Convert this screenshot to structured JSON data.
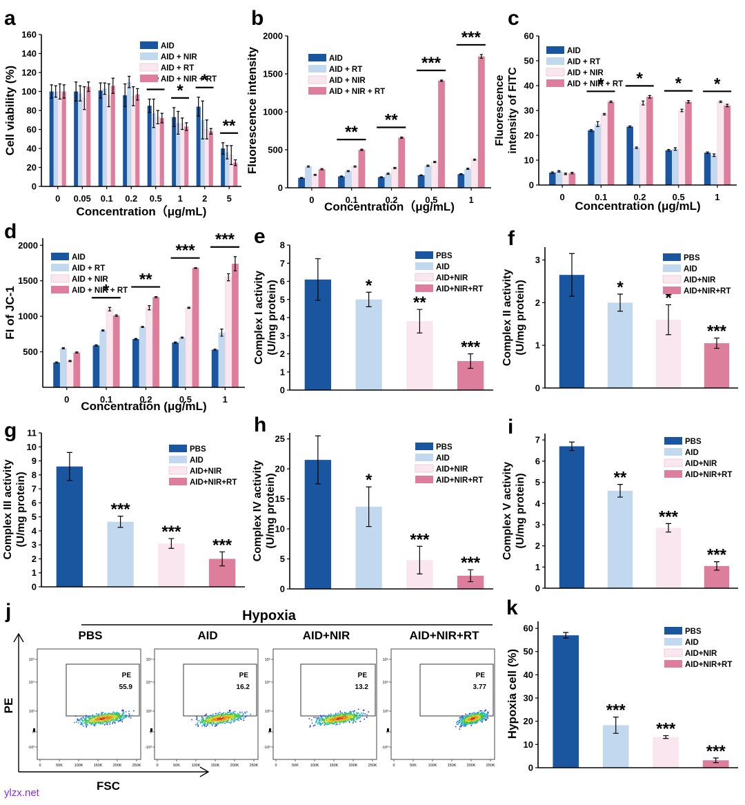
{
  "colors": {
    "AID_dark": "#1a56a0",
    "light_blue": "#c2d8ee",
    "light_pink": "#fae6ee",
    "pink": "#dd7f9c",
    "axis": "#000000"
  },
  "chart_data": [
    {
      "id": "a",
      "type": "bar",
      "letter": "a",
      "ylabel": "Cell viability (%)",
      "xlabel": "Concentration（μg/mL)",
      "ylim": [
        0,
        160
      ],
      "yticks": [
        0,
        20,
        40,
        60,
        80,
        100,
        120,
        140,
        160
      ],
      "categories": [
        "0",
        "0.05",
        "0.1",
        "0.2",
        "0.5",
        "1",
        "2",
        "5"
      ],
      "series": [
        {
          "name": "AID",
          "color": "#1a56a0",
          "values": [
            100,
            100,
            101,
            96,
            85,
            73,
            84,
            40
          ],
          "err": [
            7,
            10,
            8,
            12,
            7,
            10,
            10,
            6
          ]
        },
        {
          "name": "AID + NIR",
          "color": "#c2d8ee",
          "values": [
            100,
            98,
            103,
            110,
            77,
            67,
            70,
            36
          ],
          "err": [
            6,
            8,
            6,
            6,
            15,
            12,
            20,
            7
          ]
        },
        {
          "name": "AID + RT",
          "color": "#fae6ee",
          "values": [
            100,
            93,
            96,
            95,
            73,
            66,
            60,
            33
          ],
          "err": [
            8,
            12,
            12,
            10,
            7,
            6,
            10,
            10
          ]
        },
        {
          "name": "AID + NIR + RT",
          "color": "#dd7f9c",
          "values": [
            100,
            105,
            106,
            97,
            72,
            63,
            58,
            25
          ],
          "err": [
            7,
            5,
            8,
            6,
            5,
            4,
            3,
            3
          ]
        }
      ],
      "sig": [
        {
          "cat": 4,
          "label": "*"
        },
        {
          "cat": 5,
          "label": "*"
        },
        {
          "cat": 6,
          "label": "*"
        },
        {
          "cat": 7,
          "label": "**"
        }
      ],
      "legend": [
        "AID",
        "AID + NIR",
        "AID + RT",
        "AID + NIR + RT"
      ]
    },
    {
      "id": "b",
      "type": "bar",
      "letter": "b",
      "ylabel": "Fluorescence intensity",
      "xlabel": "Concentration（μg/mL)",
      "ylim": [
        0,
        2000
      ],
      "yticks": [
        0,
        500,
        1000,
        1500,
        2000
      ],
      "categories": [
        "0",
        "0.1",
        "0.2",
        "0.5",
        "1"
      ],
      "series": [
        {
          "name": "AID",
          "color": "#1a56a0",
          "values": [
            130,
            150,
            140,
            165,
            180
          ],
          "err": [
            5,
            5,
            5,
            5,
            5
          ]
        },
        {
          "name": "AID + RT",
          "color": "#c2d8ee",
          "values": [
            280,
            220,
            185,
            290,
            250
          ],
          "err": [
            8,
            8,
            8,
            8,
            8
          ]
        },
        {
          "name": "AID + NIR",
          "color": "#fae6ee",
          "values": [
            170,
            280,
            260,
            340,
            370
          ],
          "err": [
            8,
            8,
            8,
            8,
            8
          ]
        },
        {
          "name": "AID + NIR + RT",
          "color": "#dd7f9c",
          "values": [
            245,
            500,
            660,
            1410,
            1730
          ],
          "err": [
            8,
            8,
            8,
            8,
            25
          ]
        }
      ],
      "sig": [
        {
          "cat": 1,
          "label": "**"
        },
        {
          "cat": 2,
          "label": "**"
        },
        {
          "cat": 3,
          "label": "***"
        },
        {
          "cat": 4,
          "label": "***"
        }
      ],
      "legend": [
        "AID",
        "AID + RT",
        "AID + NIR",
        "AID + NIR + RT"
      ]
    },
    {
      "id": "c",
      "type": "bar",
      "letter": "c",
      "ylabel": "Fluorescence intensity of FITC",
      "xlabel": "Concentration (μg/mL)",
      "ylim": [
        0,
        60
      ],
      "yticks": [
        0,
        10,
        20,
        30,
        40,
        50,
        60
      ],
      "categories": [
        "0",
        "0.1",
        "0.2",
        "0.5",
        "1"
      ],
      "series": [
        {
          "name": "AID",
          "color": "#1a56a0",
          "values": [
            5,
            22,
            23.5,
            14,
            13
          ],
          "err": [
            0.3,
            0.3,
            0.3,
            0.3,
            0.3
          ]
        },
        {
          "name": "AID + RT",
          "color": "#c2d8ee",
          "values": [
            5.5,
            24.5,
            15,
            14.5,
            12
          ],
          "err": [
            0.3,
            1,
            0.3,
            0.5,
            0.5
          ]
        },
        {
          "name": "AID + NIR",
          "color": "#fae6ee",
          "values": [
            4.5,
            28.5,
            33,
            30,
            33.5
          ],
          "err": [
            0.3,
            0.3,
            0.8,
            0.5,
            0.3
          ]
        },
        {
          "name": "AID + NIR + RT",
          "color": "#dd7f9c",
          "values": [
            4.8,
            33.5,
            35.5,
            33.5,
            32
          ],
          "err": [
            0.3,
            0.3,
            0.5,
            0.5,
            0.5
          ]
        }
      ],
      "sig": [
        {
          "cat": 1,
          "label": "*"
        },
        {
          "cat": 2,
          "label": "*"
        },
        {
          "cat": 3,
          "label": "*"
        },
        {
          "cat": 4,
          "label": "*"
        }
      ],
      "legend": [
        "AID",
        "AID + RT",
        "AID + NIR",
        "AID + NIR + RT"
      ]
    },
    {
      "id": "d",
      "type": "bar",
      "letter": "d",
      "ylabel": "FI of JC-1",
      "xlabel": "Concentration (μg/mL)",
      "ylim": [
        0,
        2100
      ],
      "yticks": [
        500,
        1000,
        1500,
        2000
      ],
      "categories": [
        "0",
        "0.1",
        "0.2",
        "0.5",
        "1"
      ],
      "series": [
        {
          "name": "AID",
          "color": "#1a56a0",
          "values": [
            350,
            590,
            680,
            630,
            530
          ],
          "err": [
            8,
            8,
            8,
            8,
            8
          ]
        },
        {
          "name": "AID + RT",
          "color": "#c2d8ee",
          "values": [
            550,
            800,
            850,
            700,
            770
          ],
          "err": [
            8,
            8,
            8,
            8,
            50
          ]
        },
        {
          "name": "AID + NIR",
          "color": "#fae6ee",
          "values": [
            370,
            1100,
            1120,
            1120,
            1550
          ],
          "err": [
            8,
            25,
            30,
            8,
            50
          ]
        },
        {
          "name": "AID + NIR + RT",
          "color": "#dd7f9c",
          "values": [
            490,
            1010,
            1270,
            1680,
            1740
          ],
          "err": [
            8,
            10,
            8,
            5,
            100
          ]
        }
      ],
      "sig": [
        {
          "cat": 1,
          "label": "*"
        },
        {
          "cat": 2,
          "label": "**"
        },
        {
          "cat": 3,
          "label": "***"
        },
        {
          "cat": 4,
          "label": "***"
        }
      ],
      "legend": [
        "AID",
        "AID + RT",
        "AID + NIR",
        "AID + NIR + RT"
      ]
    },
    {
      "id": "e",
      "type": "bar",
      "letter": "e",
      "ylabel": "Complex I activity (U/mg protein)",
      "ylim": [
        0,
        8
      ],
      "yticks": [
        0,
        1,
        2,
        3,
        4,
        5,
        6,
        7,
        8
      ],
      "categories": [
        "PBS",
        "AID",
        "AID+NIR",
        "AID+NIR+RT"
      ],
      "colors": [
        "#1a56a0",
        "#c2d8ee",
        "#fae6ee",
        "#dd7f9c"
      ],
      "values": [
        6.1,
        5.0,
        3.8,
        1.6
      ],
      "err": [
        1.15,
        0.4,
        0.65,
        0.4
      ],
      "sig": [
        "",
        "*",
        "**",
        "***"
      ],
      "legend": [
        "PBS",
        "AID",
        "AID+NIR",
        "AID+NIR+RT"
      ]
    },
    {
      "id": "f",
      "type": "bar",
      "letter": "f",
      "ylabel": "Complex II activity (U/mg protein)",
      "ylim": [
        0,
        3.3
      ],
      "yticks": [
        0,
        1,
        2,
        3
      ],
      "categories": [
        "PBS",
        "AID",
        "AID+NIR",
        "AID+NIR+RT"
      ],
      "colors": [
        "#1a56a0",
        "#c2d8ee",
        "#fae6ee",
        "#dd7f9c"
      ],
      "values": [
        2.65,
        2.0,
        1.6,
        1.05
      ],
      "err": [
        0.5,
        0.2,
        0.35,
        0.12
      ],
      "sig": [
        "",
        "*",
        "*",
        "***"
      ],
      "legend": [
        "PBS",
        "AID",
        "AID+NIR",
        "AID+NIR+RT"
      ]
    },
    {
      "id": "g",
      "type": "bar",
      "letter": "g",
      "ylabel": "Complex III activity (U/mg protein)",
      "ylim": [
        0,
        11
      ],
      "yticks": [
        0,
        1,
        2,
        3,
        4,
        5,
        6,
        7,
        8,
        9,
        10,
        11
      ],
      "categories": [
        "PBS",
        "AID",
        "AID+NIR",
        "AID+NIR+RT"
      ],
      "colors": [
        "#1a56a0",
        "#c2d8ee",
        "#fae6ee",
        "#dd7f9c"
      ],
      "values": [
        8.6,
        4.65,
        3.1,
        2.0
      ],
      "err": [
        1.0,
        0.4,
        0.35,
        0.5
      ],
      "sig": [
        "",
        "***",
        "***",
        "***"
      ],
      "legend": [
        "PBS",
        "AID",
        "AID+NIR",
        "AID+NIR+RT"
      ]
    },
    {
      "id": "h",
      "type": "bar",
      "letter": "h",
      "ylabel": "Complex IV activity (U/mg protein)",
      "ylim": [
        0,
        26
      ],
      "yticks": [
        0,
        5,
        10,
        15,
        20,
        25
      ],
      "categories": [
        "PBS",
        "AID",
        "AID+NIR",
        "AID+NIR+RT"
      ],
      "colors": [
        "#1a56a0",
        "#c2d8ee",
        "#fae6ee",
        "#dd7f9c"
      ],
      "values": [
        21.5,
        13.7,
        4.8,
        2.2
      ],
      "err": [
        4.0,
        3.3,
        2.3,
        1.0
      ],
      "sig": [
        "",
        "*",
        "***",
        "***"
      ],
      "legend": [
        "PBS",
        "AID",
        "AID+NIR",
        "AID+NIR+RT"
      ]
    },
    {
      "id": "i",
      "type": "bar",
      "letter": "i",
      "ylabel": "Complex V activity (U/mg protein)",
      "ylim": [
        0,
        7.3
      ],
      "yticks": [
        0,
        1,
        2,
        3,
        4,
        5,
        6,
        7
      ],
      "categories": [
        "PBS",
        "AID",
        "AID+NIR",
        "AID+NIR+RT"
      ],
      "colors": [
        "#1a56a0",
        "#c2d8ee",
        "#fae6ee",
        "#dd7f9c"
      ],
      "values": [
        6.7,
        4.6,
        2.85,
        1.05
      ],
      "err": [
        0.2,
        0.3,
        0.2,
        0.2
      ],
      "sig": [
        "",
        "**",
        "***",
        "***"
      ],
      "legend": [
        "PBS",
        "AID",
        "AID+NIR",
        "AID+NIR+RT"
      ]
    },
    {
      "id": "k",
      "type": "bar",
      "letter": "k",
      "ylabel": "Hypoxia cell (%)",
      "ylim": [
        0,
        63
      ],
      "yticks": [
        0,
        10,
        20,
        30,
        40,
        50,
        60
      ],
      "categories": [
        "PBS",
        "AID",
        "AID+NIR",
        "AID+NIR+RT"
      ],
      "colors": [
        "#1a56a0",
        "#c2d8ee",
        "#fae6ee",
        "#dd7f9c"
      ],
      "values": [
        57,
        18.3,
        13.2,
        3.2
      ],
      "err": [
        1.2,
        3.5,
        0.6,
        1.0
      ],
      "sig": [
        "",
        "***",
        "***",
        "***"
      ],
      "legend": [
        "PBS",
        "AID",
        "AID+NIR",
        "AID+NIR+RT"
      ]
    }
  ],
  "flow": {
    "letter": "j",
    "title": "Hypoxia",
    "ylabel": "PE",
    "xlabel": "FSC",
    "gate_label": "PE",
    "groups": [
      {
        "name": "PBS",
        "value": "55.9"
      },
      {
        "name": "AID",
        "value": "16.2"
      },
      {
        "name": "AID+NIR",
        "value": "13.2"
      },
      {
        "name": "AID+NIR+RT",
        "value": "3.77"
      }
    ],
    "xticks": [
      "0",
      "50K",
      "100K",
      "150K",
      "200K",
      "250K"
    ],
    "yticks": [
      "10⁵",
      "10⁴",
      "10³",
      "0",
      "-10³"
    ]
  },
  "watermark": "ylzx.net"
}
